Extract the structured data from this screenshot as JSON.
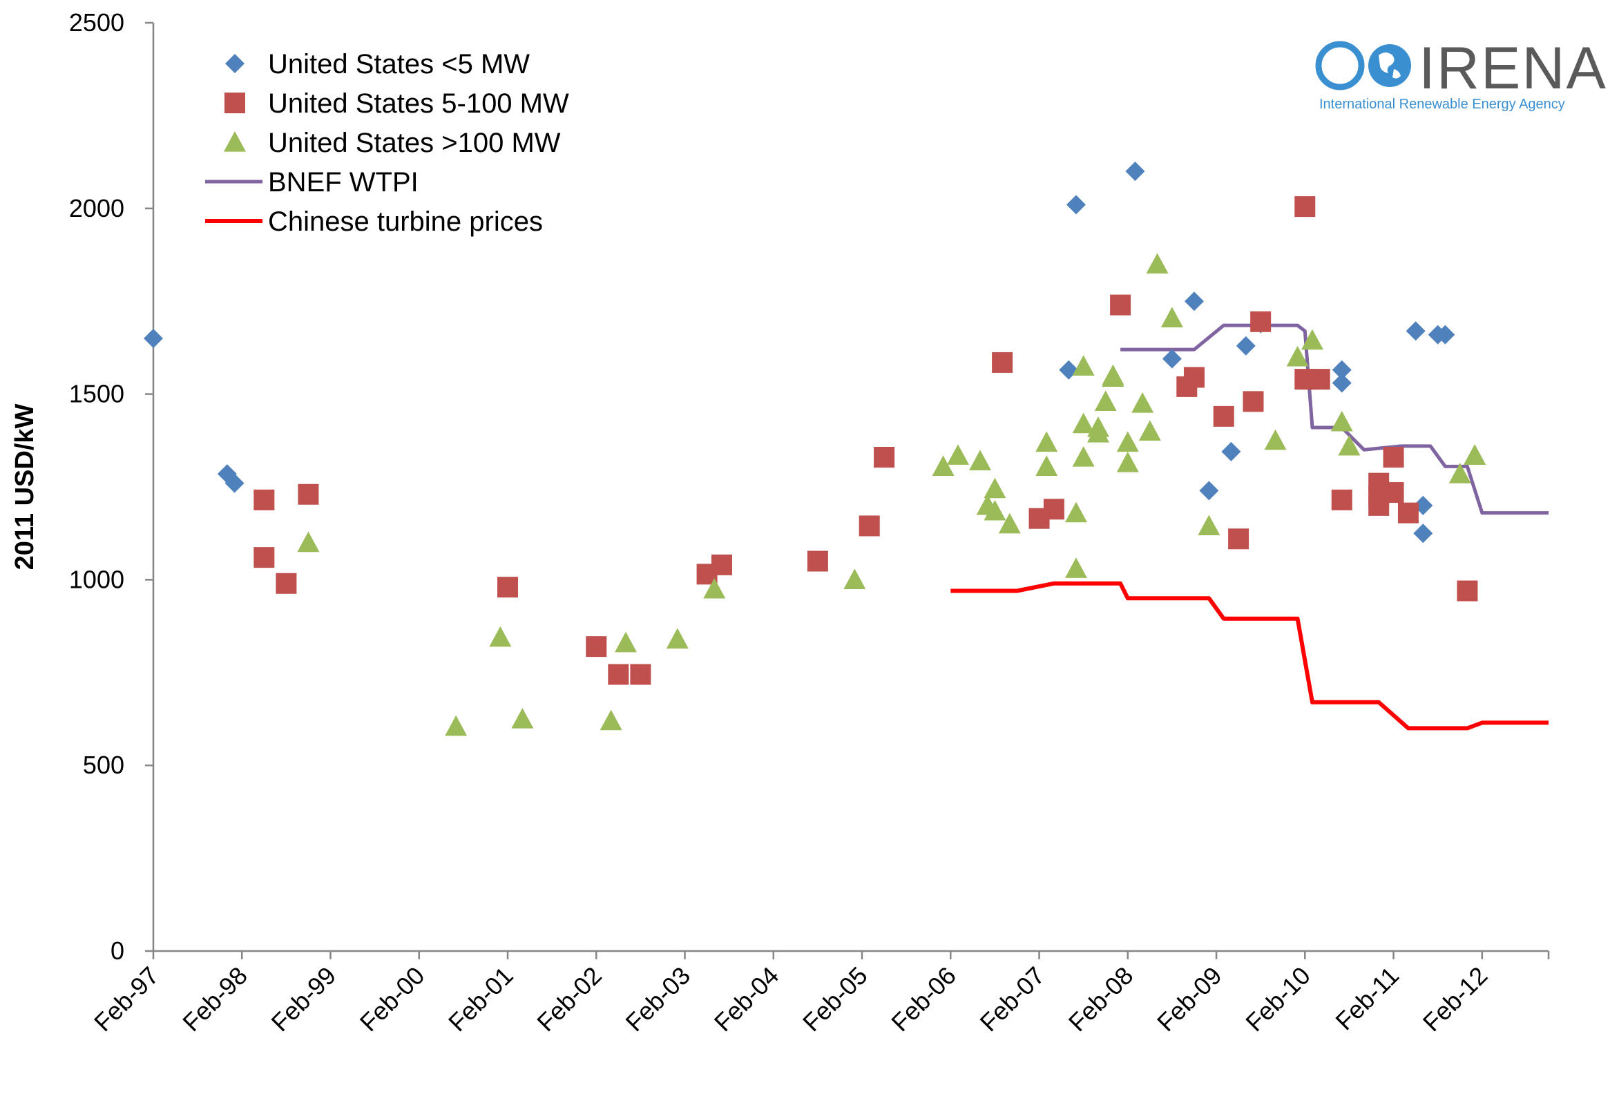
{
  "chart_data": {
    "type": "scatter",
    "ylabel": "2011 USD/kW",
    "ylim": [
      0,
      2500
    ],
    "yticks": [
      0,
      500,
      1000,
      1500,
      2000,
      2500
    ],
    "x_ticks": [
      "Feb-97",
      "Feb-98",
      "Feb-99",
      "Feb-00",
      "Feb-01",
      "Feb-02",
      "Feb-03",
      "Feb-04",
      "Feb-05",
      "Feb-06",
      "Feb-07",
      "Feb-08",
      "Feb-09",
      "Feb-10",
      "Feb-11",
      "Feb-12"
    ],
    "xlim": [
      "Feb-97",
      "Nov-12"
    ],
    "grid": false,
    "legend_position": "top-left",
    "series": [
      {
        "name": "United States <5 MW",
        "kind": "scatter",
        "marker": "diamond",
        "color": "#4F81BD",
        "points": [
          [
            "1997-02",
            1650
          ],
          [
            "1997-12",
            1285
          ],
          [
            "1998-01",
            1260
          ],
          [
            "2007-07",
            2010
          ],
          [
            "2007-06",
            1565
          ],
          [
            "2008-03",
            2100
          ],
          [
            "2008-08",
            1595
          ],
          [
            "2008-11",
            1750
          ],
          [
            "2009-01",
            1240
          ],
          [
            "2009-04",
            1345
          ],
          [
            "2009-06",
            1630
          ],
          [
            "2009-08",
            1690
          ],
          [
            "2010-07",
            1565
          ],
          [
            "2010-07",
            1530
          ],
          [
            "2011-05",
            1670
          ],
          [
            "2011-06",
            1200
          ],
          [
            "2011-06",
            1125
          ],
          [
            "2011-08",
            1660
          ],
          [
            "2011-09",
            1660
          ]
        ]
      },
      {
        "name": "United States 5-100 MW",
        "kind": "scatter",
        "marker": "square",
        "color": "#C0504D",
        "points": [
          [
            "1998-05",
            1215
          ],
          [
            "1998-05",
            1060
          ],
          [
            "1998-08",
            990
          ],
          [
            "1998-11",
            1230
          ],
          [
            "2001-02",
            980
          ],
          [
            "2002-02",
            820
          ],
          [
            "2002-05",
            745
          ],
          [
            "2002-08",
            745
          ],
          [
            "2003-05",
            1015
          ],
          [
            "2003-07",
            1040
          ],
          [
            "2004-08",
            1050
          ],
          [
            "2005-03",
            1145
          ],
          [
            "2005-05",
            1330
          ],
          [
            "2006-09",
            1585
          ],
          [
            "2007-02",
            1165
          ],
          [
            "2007-04",
            1190
          ],
          [
            "2008-01",
            1740
          ],
          [
            "2008-10",
            1520
          ],
          [
            "2008-11",
            1545
          ],
          [
            "2009-03",
            1440
          ],
          [
            "2009-05",
            1110
          ],
          [
            "2009-07",
            1480
          ],
          [
            "2009-08",
            1695
          ],
          [
            "2010-02",
            2005
          ],
          [
            "2010-02",
            1540
          ],
          [
            "2010-04",
            1540
          ],
          [
            "2010-07",
            1215
          ],
          [
            "2010-12",
            1260
          ],
          [
            "2010-12",
            1225
          ],
          [
            "2010-12",
            1200
          ],
          [
            "2011-02",
            1330
          ],
          [
            "2011-02",
            1235
          ],
          [
            "2011-04",
            1180
          ],
          [
            "2011-12",
            970
          ]
        ]
      },
      {
        "name": "United States >100 MW",
        "kind": "scatter",
        "marker": "triangle",
        "color": "#9BBB59",
        "points": [
          [
            "1998-11",
            1100
          ],
          [
            "2000-07",
            605
          ],
          [
            "2001-01",
            845
          ],
          [
            "2001-04",
            625
          ],
          [
            "2002-04",
            620
          ],
          [
            "2002-06",
            830
          ],
          [
            "2003-01",
            840
          ],
          [
            "2003-06",
            975
          ],
          [
            "2005-01",
            1000
          ],
          [
            "2006-01",
            1305
          ],
          [
            "2006-03",
            1335
          ],
          [
            "2006-06",
            1320
          ],
          [
            "2006-07",
            1200
          ],
          [
            "2006-08",
            1245
          ],
          [
            "2006-08",
            1185
          ],
          [
            "2006-10",
            1150
          ],
          [
            "2007-03",
            1370
          ],
          [
            "2007-03",
            1305
          ],
          [
            "2007-07",
            1030
          ],
          [
            "2007-07",
            1180
          ],
          [
            "2007-08",
            1330
          ],
          [
            "2007-08",
            1420
          ],
          [
            "2007-08",
            1575
          ],
          [
            "2007-10",
            1395
          ],
          [
            "2007-10",
            1410
          ],
          [
            "2007-11",
            1480
          ],
          [
            "2007-12",
            1545
          ],
          [
            "2007-12",
            1550
          ],
          [
            "2008-02",
            1370
          ],
          [
            "2008-02",
            1315
          ],
          [
            "2008-04",
            1475
          ],
          [
            "2008-05",
            1400
          ],
          [
            "2008-06",
            1850
          ],
          [
            "2008-08",
            1705
          ],
          [
            "2009-01",
            1145
          ],
          [
            "2009-10",
            1375
          ],
          [
            "2010-01",
            1600
          ],
          [
            "2010-03",
            1645
          ],
          [
            "2010-07",
            1425
          ],
          [
            "2010-08",
            1360
          ],
          [
            "2011-11",
            1285
          ],
          [
            "2012-01",
            1335
          ],
          [
            "2012-01",
            1335
          ]
        ]
      },
      {
        "name": "BNEF WTPI",
        "kind": "line",
        "color": "#8064A2",
        "points": [
          [
            "2008-01",
            1620
          ],
          [
            "2008-11",
            1620
          ],
          [
            "2009-03",
            1685
          ],
          [
            "2010-01",
            1685
          ],
          [
            "2010-02",
            1670
          ],
          [
            "2010-03",
            1410
          ],
          [
            "2010-07",
            1410
          ],
          [
            "2010-10",
            1350
          ],
          [
            "2011-03",
            1360
          ],
          [
            "2011-07",
            1360
          ],
          [
            "2011-09",
            1305
          ],
          [
            "2011-12",
            1305
          ],
          [
            "2012-02",
            1180
          ],
          [
            "2012-11",
            1180
          ]
        ]
      },
      {
        "name": "Chinese turbine prices",
        "kind": "line",
        "color": "#FF0000",
        "points": [
          [
            "2006-02",
            970
          ],
          [
            "2006-11",
            970
          ],
          [
            "2007-04",
            990
          ],
          [
            "2008-01",
            990
          ],
          [
            "2008-02",
            950
          ],
          [
            "2009-01",
            950
          ],
          [
            "2009-03",
            895
          ],
          [
            "2010-01",
            895
          ],
          [
            "2010-03",
            670
          ],
          [
            "2010-12",
            670
          ],
          [
            "2011-04",
            600
          ],
          [
            "2011-12",
            600
          ],
          [
            "2012-02",
            615
          ],
          [
            "2012-11",
            615
          ]
        ]
      }
    ]
  },
  "logo": {
    "name": "IRENA",
    "subtitle": "International Renewable Energy Agency",
    "color": "#3A8FD0"
  }
}
